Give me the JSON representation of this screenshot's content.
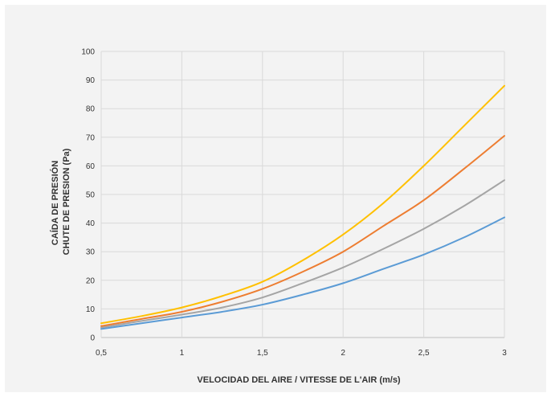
{
  "chart_data": {
    "type": "line",
    "title": "",
    "xlabel": "VELOCIDAD DEL AIRE / VITESSE DE L'AIR (m/s)",
    "ylabel_lines": [
      "CAÍDA DE PRESIÓN",
      "CHUTE DE PRESION (Pa)"
    ],
    "xlim": [
      0.5,
      3
    ],
    "ylim": [
      0,
      100
    ],
    "x_ticks": [
      0.5,
      1,
      1.5,
      2,
      2.5,
      3
    ],
    "x_tick_labels": [
      "0,5",
      "1",
      "1,5",
      "2",
      "2,5",
      "3"
    ],
    "y_ticks": [
      0,
      10,
      20,
      30,
      40,
      50,
      60,
      70,
      80,
      90,
      100
    ],
    "y_tick_labels": [
      "0",
      "10",
      "20",
      "30",
      "40",
      "50",
      "60",
      "70",
      "80",
      "90",
      "100"
    ],
    "grid": true,
    "legend": "none",
    "x": [
      0.5,
      0.75,
      1,
      1.25,
      1.5,
      1.75,
      2,
      2.25,
      2.5,
      2.75,
      3
    ],
    "series": [
      {
        "color": "#5b9bd5",
        "values": [
          3,
          5,
          7,
          9,
          11.5,
          15,
          19,
          24,
          29,
          35,
          42
        ]
      },
      {
        "color": "#a5a5a5",
        "values": [
          3.5,
          5.8,
          8,
          10.5,
          14,
          19,
          24.5,
          31,
          38,
          46,
          55
        ]
      },
      {
        "color": "#ed7d31",
        "values": [
          4,
          6.5,
          9,
          12.5,
          17,
          23,
          30,
          39,
          48,
          59,
          70.5
        ]
      },
      {
        "color": "#ffc000",
        "values": [
          5,
          7.5,
          10.5,
          14.5,
          19.5,
          27,
          36,
          47,
          60,
          74,
          88
        ]
      }
    ]
  }
}
